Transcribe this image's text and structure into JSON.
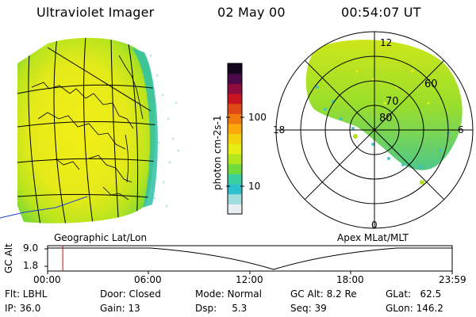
{
  "header": {
    "title": "Ultraviolet Imager",
    "date": "02 May 00",
    "time": "00:54:07 UT"
  },
  "colorbar": {
    "label": "photon cm-2s-1",
    "ticks": [
      "100",
      "10"
    ],
    "colors": [
      "#e8eef0",
      "#9fdde0",
      "#2fc0cf",
      "#3bd0a0",
      "#6fdc3c",
      "#b4e61e",
      "#e8ee14",
      "#f4d20c",
      "#f9a90a",
      "#f07a10",
      "#e04a18",
      "#c91420",
      "#8e0d3e",
      "#4a0a4a",
      "#16061e"
    ]
  },
  "panels": {
    "geo_label": "Geographic Lat/Lon",
    "polar_label": "Apex MLat/MLT",
    "polar": {
      "lat_labels": [
        "80",
        "70",
        "60"
      ],
      "mlt_labels": [
        "12",
        "18",
        "6",
        "0"
      ]
    }
  },
  "timeline": {
    "ylabel": "GC Alt",
    "yticks": [
      "9.0",
      "1.8"
    ],
    "xticks": [
      "00:00",
      "06:00",
      "12:00",
      "18:00",
      "23:59"
    ],
    "marker_hour": 0.9
  },
  "info": {
    "flt": "Flt: LBHL",
    "ip": "IP: 36.0",
    "door": "Door: Closed",
    "gain": "Gain: 13",
    "mode": "Mode: Normal",
    "dsp": "Dsp:     5.3",
    "gcalt": "GC Alt: 8.2 Re",
    "seq": "Seq: 39",
    "glat": "GLat:   62.5",
    "glon": "GLon: 146.2"
  }
}
